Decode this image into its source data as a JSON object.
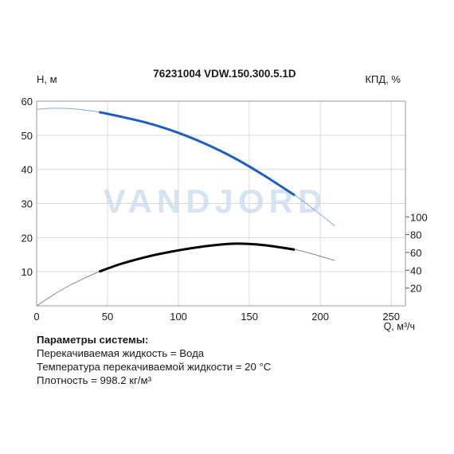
{
  "chart_data": {
    "type": "line",
    "title": "76231004 VDW.150.300.5.1D",
    "watermark": "VANDJORD",
    "xlabel": "Q, м³/ч",
    "ylabel_left": "H, м",
    "ylabel_right": "КПД, %",
    "xlim": [
      0,
      260
    ],
    "ylim_left": [
      0,
      60
    ],
    "ylim_right": [
      0,
      230
    ],
    "x_ticks": [
      "0",
      "50",
      "100",
      "150",
      "200",
      "250"
    ],
    "y_left_ticks": [
      "10",
      "20",
      "30",
      "40",
      "50",
      "60"
    ],
    "y_right_ticks": [
      "20",
      "40",
      "60",
      "80",
      "100"
    ],
    "grid": true,
    "colors": {
      "head": "#1f5fbf",
      "head_ext": "#7aaae0",
      "efficiency": "#000000",
      "efficiency_ext": "#888888",
      "grid": "#d9d9d9",
      "watermark": "#d6e3f2"
    },
    "series": [
      {
        "axis": "left",
        "operating_range": [
          44,
          182
        ],
        "x": [
          0,
          10,
          20,
          30,
          44,
          60,
          80,
          100,
          120,
          140,
          160,
          182,
          195,
          210
        ],
        "values": [
          57.6,
          57.9,
          57.9,
          57.6,
          56.8,
          55.4,
          53.4,
          50.7,
          47.3,
          43.2,
          38.3,
          32.4,
          28.4,
          23.5
        ]
      },
      {
        "axis": "right",
        "operating_range": [
          44,
          182
        ],
        "x": [
          0,
          10,
          20,
          30,
          44,
          60,
          80,
          100,
          120,
          140,
          160,
          182,
          195,
          210
        ],
        "values": [
          0,
          10.5,
          20.1,
          28.3,
          38.4,
          47.4,
          56.0,
          62.4,
          67.2,
          69.9,
          68.3,
          63.2,
          58.1,
          51.0
        ]
      }
    ]
  },
  "params": {
    "title": "Параметры системы:",
    "lines": [
      "Перекачиваемая жидкость = Вода",
      "Температура перекачиваемой жидкости = 20 °C",
      "Плотность = 998.2 кг/м³"
    ]
  }
}
